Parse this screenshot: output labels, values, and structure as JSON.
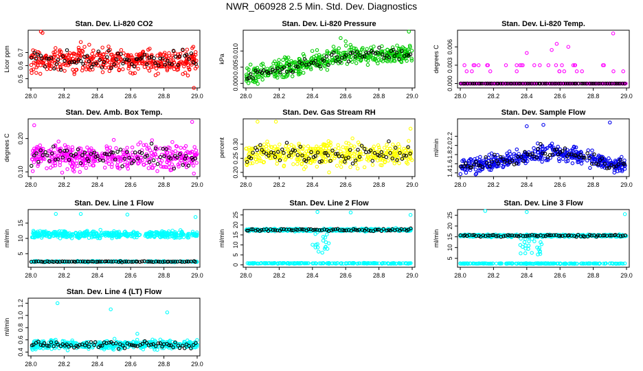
{
  "title": "NWR_060928  2.5 Min. Std. Dev. Diagnostics",
  "x_ticks": [
    "28.0",
    "28.2",
    "28.4",
    "28.6",
    "28.8",
    "29.0"
  ],
  "colors": {
    "red": "#ff0000",
    "green": "#00cc00",
    "magenta": "#ff00ff",
    "yellow": "#ffff00",
    "blue": "#0000ee",
    "cyan": "#00ffff",
    "black": "#000000"
  },
  "chart_data": [
    {
      "type": "scatter",
      "title": "Stan. Dev. Li-820 CO2",
      "ylabel": "Licor ppm",
      "xlim": [
        28.0,
        29.0
      ],
      "ylim": [
        0.44,
        0.86
      ],
      "yticks": [
        {
          "v": 0.5,
          "label": "0.5"
        },
        {
          "v": 0.6,
          "label": "0.6"
        },
        {
          "v": 0.7,
          "label": "0.7"
        }
      ],
      "color": "red",
      "dist": {
        "kind": "band",
        "center": 0.64,
        "spread": 0.1
      },
      "outliers": [
        [
          28.06,
          0.86
        ],
        [
          28.07,
          0.85
        ],
        [
          28.98,
          0.43
        ],
        [
          28.3,
          0.78
        ]
      ]
    },
    {
      "type": "scatter",
      "title": "Stan. Dev. Li-820 Pressure",
      "ylabel": "kPa",
      "xlim": [
        28.0,
        29.0
      ],
      "ylim": [
        -0.001,
        0.016
      ],
      "yticks": [
        {
          "v": 0.0,
          "label": "0.000"
        },
        {
          "v": 0.005,
          "label": "0.005"
        },
        {
          "v": 0.01,
          "label": "0.010"
        }
      ],
      "color": "green",
      "dist": {
        "kind": "trend",
        "start": 0.002,
        "end": 0.009,
        "spread": 0.0035
      },
      "outliers": [
        [
          28.98,
          0.016
        ],
        [
          28.57,
          0.014
        ],
        [
          28.6,
          0.013
        ]
      ]
    },
    {
      "type": "scatter",
      "title": "Stan. Dev. Li-820 Temp.",
      "ylabel": "degrees C",
      "xlim": [
        28.0,
        29.0
      ],
      "ylim": [
        -0.0005,
        0.0085
      ],
      "yticks": [
        {
          "v": 0.0,
          "label": "0.000"
        },
        {
          "v": 0.003,
          "label": "0.003"
        },
        {
          "v": 0.006,
          "label": "0.006"
        }
      ],
      "color": "magenta",
      "dist": {
        "kind": "levels",
        "levels": [
          0.0,
          0.002,
          0.003
        ],
        "weights": [
          0.72,
          0.16,
          0.12
        ]
      },
      "outliers": [
        [
          28.92,
          0.0082
        ],
        [
          28.58,
          0.0065
        ],
        [
          28.65,
          0.006
        ],
        [
          28.55,
          0.0055
        ],
        [
          28.4,
          0.005
        ]
      ]
    },
    {
      "type": "scatter",
      "title": "Stan. Dev. Amb. Box Temp.",
      "ylabel": "degrees C",
      "xlim": [
        28.0,
        29.0
      ],
      "ylim": [
        0.09,
        0.255
      ],
      "yticks": [
        {
          "v": 0.1,
          "label": "0.10"
        },
        {
          "v": 0.2,
          "label": "0.20"
        }
      ],
      "color": "magenta",
      "dist": {
        "kind": "band",
        "center": 0.145,
        "spread": 0.04
      },
      "outliers": [
        [
          28.97,
          0.25
        ],
        [
          28.02,
          0.24
        ],
        [
          28.98,
          0.095
        ]
      ]
    },
    {
      "type": "scatter",
      "title": "Stan. Dev. Gas Stream RH",
      "ylabel": "percent",
      "xlim": [
        28.0,
        29.0
      ],
      "ylim": [
        0.19,
        0.385
      ],
      "yticks": [
        {
          "v": 0.2,
          "label": "0.20"
        },
        {
          "v": 0.25,
          "label": "0.25"
        },
        {
          "v": 0.3,
          "label": "0.30"
        }
      ],
      "color": "yellow",
      "dist": {
        "kind": "band",
        "center": 0.265,
        "spread": 0.045
      },
      "outliers": [
        [
          28.07,
          0.38
        ],
        [
          28.18,
          0.38
        ],
        [
          28.99,
          0.355
        ],
        [
          28.5,
          0.2
        ]
      ]
    },
    {
      "type": "scatter",
      "title": "Stan. Dev. Sample Flow",
      "ylabel": "ml/min",
      "xlim": [
        28.0,
        29.0
      ],
      "ylim": [
        1.35,
        2.55
      ],
      "yticks": [
        {
          "v": 1.4,
          "label": "1.4"
        },
        {
          "v": 1.6,
          "label": "1.6"
        },
        {
          "v": 1.8,
          "label": "1.8"
        },
        {
          "v": 2.0,
          "label": "2.0"
        },
        {
          "v": 2.2,
          "label": "2.2"
        }
      ],
      "color": "blue",
      "dist": {
        "kind": "hump",
        "base": 1.55,
        "peak": 1.85,
        "spread": 0.22
      },
      "outliers": [
        [
          28.9,
          2.5
        ],
        [
          28.5,
          2.45
        ],
        [
          28.4,
          2.42
        ]
      ]
    },
    {
      "type": "scatter",
      "title": "Stan. Dev. Line 1 Flow",
      "ylabel": "ml/min",
      "xlim": [
        28.0,
        29.0
      ],
      "ylim": [
        1.0,
        19.0
      ],
      "yticks": [
        {
          "v": 5,
          "label": "5"
        },
        {
          "v": 10,
          "label": "10"
        },
        {
          "v": 15,
          "label": "15"
        }
      ],
      "color": "cyan",
      "dist": {
        "kind": "twoband",
        "hi": 11.3,
        "hiSpread": 1.4,
        "lo": 2.4,
        "loSpread": 0.25,
        "blackOnLo": true
      },
      "outliers": [
        [
          28.15,
          18.0
        ],
        [
          28.3,
          18.0
        ],
        [
          28.99,
          17.0
        ],
        [
          28.58,
          17.8
        ]
      ]
    },
    {
      "type": "scatter",
      "title": "Stan. Dev. Line 2 Flow",
      "ylabel": "ml/min",
      "xlim": [
        28.0,
        29.0
      ],
      "ylim": [
        -0.5,
        27.0
      ],
      "yticks": [
        {
          "v": 0,
          "label": "0"
        },
        {
          "v": 5,
          "label": "5"
        },
        {
          "v": 10,
          "label": "10"
        },
        {
          "v": 15,
          "label": "15"
        },
        {
          "v": 20,
          "label": "20"
        },
        {
          "v": 25,
          "label": "25"
        }
      ],
      "color": "cyan",
      "dist": {
        "kind": "twoband",
        "hi": 17.5,
        "hiSpread": 0.8,
        "lo": 0.8,
        "loSpread": 0.25,
        "dip": [
          28.4,
          28.5,
          6.0
        ]
      },
      "outliers": [
        [
          28.43,
          26.5
        ],
        [
          28.99,
          25.0
        ],
        [
          28.63,
          26.2
        ]
      ]
    },
    {
      "type": "scatter",
      "title": "Stan. Dev. Line 3 Flow",
      "ylabel": "ml/min",
      "xlim": [
        28.0,
        29.0
      ],
      "ylim": [
        1.5,
        27.0
      ],
      "yticks": [
        {
          "v": 5,
          "label": "5"
        },
        {
          "v": 10,
          "label": "10"
        },
        {
          "v": 15,
          "label": "15"
        },
        {
          "v": 20,
          "label": "20"
        },
        {
          "v": 25,
          "label": "25"
        }
      ],
      "color": "cyan",
      "dist": {
        "kind": "twoband",
        "hi": 15.5,
        "hiSpread": 0.7,
        "lo": 2.6,
        "loSpread": 0.2,
        "dip": [
          28.35,
          28.5,
          6.5
        ]
      },
      "outliers": [
        [
          28.15,
          27.0
        ],
        [
          28.4,
          26.5
        ],
        [
          28.99,
          25.5
        ]
      ]
    },
    {
      "type": "scatter",
      "title": "Stan. Dev. Line 4 (LT) Flow",
      "ylabel": "ml/min",
      "xlim": [
        28.0,
        29.0
      ],
      "ylim": [
        0.36,
        1.26
      ],
      "yticks": [
        {
          "v": 0.4,
          "label": "0.4"
        },
        {
          "v": 0.6,
          "label": "0.6"
        },
        {
          "v": 0.8,
          "label": "0.8"
        },
        {
          "v": 1.0,
          "label": "1.0"
        },
        {
          "v": 1.2,
          "label": "1.2"
        }
      ],
      "color": "cyan",
      "dist": {
        "kind": "band",
        "center": 0.52,
        "spread": 0.08
      },
      "outliers": [
        [
          28.16,
          1.2
        ],
        [
          28.82,
          1.05
        ],
        [
          28.48,
          1.1
        ],
        [
          28.64,
          0.7
        ]
      ]
    }
  ]
}
